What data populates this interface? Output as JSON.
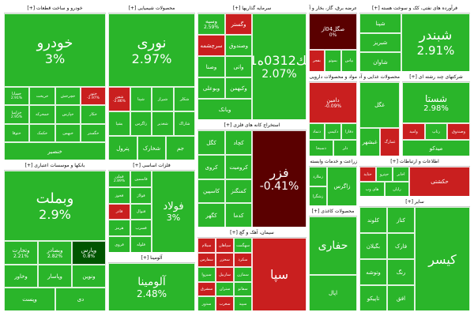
{
  "colors": {
    "up_strong": "#0b9a0b",
    "up": "#2ab52a",
    "up_light": "#47c447",
    "down": "#c91f1f",
    "down_strong": "#a40000",
    "deep_down": "#5a0000",
    "deep_up": "#005500"
  },
  "chart_data": {
    "type": "heatmap",
    "sectors": [
      {
        "name": "خودرو و ساخت قطعات [+]",
        "tiles": [
          {
            "symbol": "خودرو",
            "change": "3%",
            "tone": "up"
          },
          {
            "symbol": "خساپا",
            "change": "2.91%",
            "tone": "up"
          },
          {
            "symbol": "خریخت",
            "change": "",
            "tone": "up"
          },
          {
            "symbol": "خچرخش",
            "change": "",
            "tone": "up"
          },
          {
            "symbol": "ختور",
            "change": "-2.97%",
            "tone": "down"
          },
          {
            "symbol": "خزامیا",
            "change": "2.95%",
            "tone": "up"
          },
          {
            "symbol": "خمحرکه",
            "change": "",
            "tone": "up"
          },
          {
            "symbol": "خپارس",
            "change": "",
            "tone": "up"
          },
          {
            "symbol": "خکار",
            "change": "",
            "tone": "up"
          },
          {
            "symbol": "ختوقا",
            "change": "",
            "tone": "up"
          },
          {
            "symbol": "خکمک",
            "change": "",
            "tone": "up"
          },
          {
            "symbol": "خبهمن",
            "change": "",
            "tone": "up"
          },
          {
            "symbol": "خگستر",
            "change": "",
            "tone": "up"
          },
          {
            "symbol": "خنصير",
            "change": "",
            "tone": "up"
          }
        ]
      },
      {
        "name": "محصولات شیمیایی [+]",
        "tiles": [
          {
            "symbol": "نوری",
            "change": "2.97%",
            "tone": "up"
          },
          {
            "symbol": "شفن",
            "change": "-2.86%",
            "tone": "down"
          },
          {
            "symbol": "شپنا",
            "change": "",
            "tone": "up"
          },
          {
            "symbol": "شیراز",
            "change": "",
            "tone": "up"
          },
          {
            "symbol": "شکلر",
            "change": "",
            "tone": "up"
          },
          {
            "symbol": "بشپا",
            "change": "",
            "tone": "up"
          },
          {
            "symbol": "زاگرس",
            "change": "",
            "tone": "up"
          },
          {
            "symbol": "شغدیر",
            "change": "",
            "tone": "up"
          },
          {
            "symbol": "شاراک",
            "change": "",
            "tone": "up"
          },
          {
            "symbol": "پترول",
            "change": "",
            "tone": "up"
          },
          {
            "symbol": "شخارک",
            "change": "",
            "tone": "up"
          },
          {
            "symbol": "جم",
            "change": "",
            "tone": "up"
          }
        ]
      },
      {
        "name": "سرمایه گذاریها [+]",
        "tiles": [
          {
            "symbol": "سك0312ه01",
            "change": "2.07%",
            "tone": "up"
          },
          {
            "symbol": "وسپه",
            "change": "2.59%",
            "tone": "up"
          },
          {
            "symbol": "وگستر",
            "change": "",
            "tone": "down"
          },
          {
            "symbol": "سرچشمه",
            "change": "",
            "tone": "down"
          },
          {
            "symbol": "وصندوق",
            "change": "",
            "tone": "up"
          },
          {
            "symbol": "وصنا",
            "change": "",
            "tone": "up"
          },
          {
            "symbol": "واتی",
            "change": "",
            "tone": "up"
          },
          {
            "symbol": "وبوعلی",
            "change": "",
            "tone": "up"
          },
          {
            "symbol": "وکبهمن",
            "change": "",
            "tone": "up"
          },
          {
            "symbol": "وبانک",
            "change": "",
            "tone": "up"
          }
        ]
      },
      {
        "name": "عرضه برق، گاز، بخار و آب گرم [+]",
        "tiles": [
          {
            "symbol": "صگل04از",
            "change": "0%",
            "tone": "deep_down"
          },
          {
            "symbol": "بفجر",
            "change": "",
            "tone": "down"
          },
          {
            "symbol": "بموتو",
            "change": "",
            "tone": "up"
          },
          {
            "symbol": "بپاس",
            "change": "",
            "tone": "up"
          }
        ]
      },
      {
        "name": "فرآورده های نفتی، کک و سوخت هسته [+]",
        "tiles": [
          {
            "symbol": "شبندر",
            "change": "2.91%",
            "tone": "up"
          },
          {
            "symbol": "شپنا",
            "change": "",
            "tone": "up"
          },
          {
            "symbol": "شبریز",
            "change": "",
            "tone": "up"
          },
          {
            "symbol": "شاوان",
            "change": "",
            "tone": "up"
          }
        ]
      },
      {
        "name": "مواد و محصولات دارویی [+]",
        "tiles": [
          {
            "symbol": "دامین",
            "change": "-0.09%",
            "tone": "down"
          },
          {
            "symbol": "دتماد",
            "change": "",
            "tone": "up"
          },
          {
            "symbol": "دکیمی",
            "change": "",
            "tone": "up"
          },
          {
            "symbol": "دفارا",
            "change": "",
            "tone": "up"
          },
          {
            "symbol": "دسبحا",
            "change": "",
            "tone": "up"
          },
          {
            "symbol": "دلر",
            "change": "",
            "tone": "up"
          }
        ]
      },
      {
        "name": "محصولات غذایی و آشامیدنی [+]",
        "tiles": [
          {
            "symbol": "غگل",
            "change": "",
            "tone": "up"
          },
          {
            "symbol": "غبشهر",
            "change": "",
            "tone": "up"
          },
          {
            "symbol": "غمارگ",
            "change": "",
            "tone": "down"
          }
        ]
      },
      {
        "name": "شرکتهای چند رشته ای [+]",
        "tiles": [
          {
            "symbol": "شستا",
            "change": "2.98%",
            "tone": "up"
          },
          {
            "symbol": "وامید",
            "change": "",
            "tone": "down"
          },
          {
            "symbol": "رتاپ",
            "change": "",
            "tone": "up"
          },
          {
            "symbol": "وصندوق",
            "change": "",
            "tone": "down"
          },
          {
            "symbol": "میدکو",
            "change": "",
            "tone": "up"
          }
        ]
      },
      {
        "name": "استخراج کانه های فلزی [+]",
        "tiles": [
          {
            "symbol": "فزر",
            "change": "-0.41%",
            "tone": "deep_down"
          },
          {
            "symbol": "کگل",
            "change": "",
            "tone": "up"
          },
          {
            "symbol": "کچاد",
            "change": "",
            "tone": "up"
          },
          {
            "symbol": "کروی",
            "change": "",
            "tone": "up"
          },
          {
            "symbol": "کرومیت",
            "change": "",
            "tone": "up"
          },
          {
            "symbol": "کاسپین",
            "change": "",
            "tone": "up"
          },
          {
            "symbol": "کمنگنز",
            "change": "",
            "tone": "up"
          },
          {
            "symbol": "کگهر",
            "change": "",
            "tone": "up"
          },
          {
            "symbol": "کدما",
            "change": "",
            "tone": "up"
          }
        ]
      },
      {
        "name": "بانکها و موسسات اعتباری [+]",
        "tiles": [
          {
            "symbol": "وبملت",
            "change": "2.9%",
            "tone": "up"
          },
          {
            "symbol": "وتجارت",
            "change": "2.21%",
            "tone": "up"
          },
          {
            "symbol": "وبصادر",
            "change": "2.82%",
            "tone": "up"
          },
          {
            "symbol": "وپارس",
            "change": "0.8%",
            "tone": "deep_up"
          },
          {
            "symbol": "وخاور",
            "change": "",
            "tone": "up"
          },
          {
            "symbol": "وپاسار",
            "change": "",
            "tone": "up"
          },
          {
            "symbol": "ونوین",
            "change": "",
            "tone": "up"
          },
          {
            "symbol": "وپست",
            "change": "",
            "tone": "up"
          },
          {
            "symbol": "دی",
            "change": "",
            "tone": "up"
          }
        ]
      },
      {
        "name": "فلزات اساسی [+]",
        "tiles": [
          {
            "symbol": "فولاد",
            "change": "3%",
            "tone": "up"
          },
          {
            "symbol": "فملی",
            "change": "2.89%",
            "tone": "up"
          },
          {
            "symbol": "فاسمین",
            "change": "",
            "tone": "up"
          },
          {
            "symbol": "فخوز",
            "change": "",
            "tone": "up"
          },
          {
            "symbol": "فولاژ",
            "change": "",
            "tone": "up"
          },
          {
            "symbol": "فاذر",
            "change": "",
            "tone": "down"
          },
          {
            "symbol": "فنوال",
            "change": "",
            "tone": "up"
          },
          {
            "symbol": "هرمز",
            "change": "",
            "tone": "up"
          },
          {
            "symbol": "فسرب",
            "change": "",
            "tone": "up"
          },
          {
            "symbol": "فروی",
            "change": "",
            "tone": "up"
          },
          {
            "symbol": "فلوله",
            "change": "",
            "tone": "up"
          }
        ]
      },
      {
        "name": "آلومینا [+]",
        "tiles": [
          {
            "symbol": "آلومینا",
            "change": "2.48%",
            "tone": "up"
          }
        ]
      },
      {
        "name": "سیمان، آهک و گچ [+]",
        "tiles": [
          {
            "symbol": "سپا",
            "change": "",
            "tone": "down"
          },
          {
            "symbol": "سیلام",
            "change": "",
            "tone": "down"
          },
          {
            "symbol": "سپاهان",
            "change": "",
            "tone": "down"
          },
          {
            "symbol": "سهگمت",
            "change": "",
            "tone": "up"
          },
          {
            "symbol": "سفارس",
            "change": "",
            "tone": "down"
          },
          {
            "symbol": "سخزر",
            "change": "",
            "tone": "down"
          },
          {
            "symbol": "سکرد",
            "change": "",
            "tone": "down"
          },
          {
            "symbol": "سبزوا",
            "change": "",
            "tone": "up"
          },
          {
            "symbol": "ساربیل",
            "change": "",
            "tone": "down"
          },
          {
            "symbol": "سمازن",
            "change": "",
            "tone": "up"
          },
          {
            "symbol": "سشرق",
            "change": "",
            "tone": "down"
          },
          {
            "symbol": "ستران",
            "change": "",
            "tone": "up"
          },
          {
            "symbol": "سفانو",
            "change": "",
            "tone": "up"
          },
          {
            "symbol": "سدور",
            "change": "",
            "tone": "up"
          },
          {
            "symbol": "سغرب",
            "change": "",
            "tone": "down"
          },
          {
            "symbol": "سپید",
            "change": "",
            "tone": "up"
          }
        ]
      },
      {
        "name": "زراعت و خدمات وابسته [+]",
        "tiles": [
          {
            "symbol": "زاگرس",
            "change": "",
            "tone": "up"
          },
          {
            "symbol": "زملارد",
            "change": "",
            "tone": "up"
          },
          {
            "symbol": "زشگزا",
            "change": "",
            "tone": "up"
          }
        ]
      },
      {
        "name": "اطلاعات و ارتباطات [+]",
        "tiles": [
          {
            "symbol": "حکشتی",
            "change": "",
            "tone": "down"
          },
          {
            "symbol": "حتاید",
            "change": "",
            "tone": "down"
          },
          {
            "symbol": "حپترو",
            "change": "",
            "tone": "up"
          },
          {
            "symbol": "اخابر",
            "change": "",
            "tone": "up"
          },
          {
            "symbol": "های وب",
            "change": "",
            "tone": "up"
          },
          {
            "symbol": "رایان",
            "change": "",
            "tone": "up"
          }
        ]
      },
      {
        "name": "محصولات کاغذی [+]",
        "tiles": [
          {
            "symbol": "حفاری",
            "change": "",
            "tone": "up"
          },
          {
            "symbol": "اپال",
            "change": "",
            "tone": "up"
          }
        ]
      },
      {
        "name": "سایر [+]",
        "tiles": [
          {
            "symbol": "کیسر",
            "change": "",
            "tone": "up"
          },
          {
            "symbol": "کلوند",
            "change": "",
            "tone": "up"
          },
          {
            "symbol": "کتاز",
            "change": "",
            "tone": "up"
          },
          {
            "symbol": "بگیلان",
            "change": "",
            "tone": "up"
          },
          {
            "symbol": "فارک",
            "change": "",
            "tone": "up"
          },
          {
            "symbol": "وتوشه",
            "change": "",
            "tone": "up"
          },
          {
            "symbol": "رنگ",
            "change": "",
            "tone": "up"
          },
          {
            "symbol": "تاپیکو",
            "change": "",
            "tone": "up"
          },
          {
            "symbol": "افق",
            "change": "",
            "tone": "up"
          }
        ]
      }
    ]
  }
}
